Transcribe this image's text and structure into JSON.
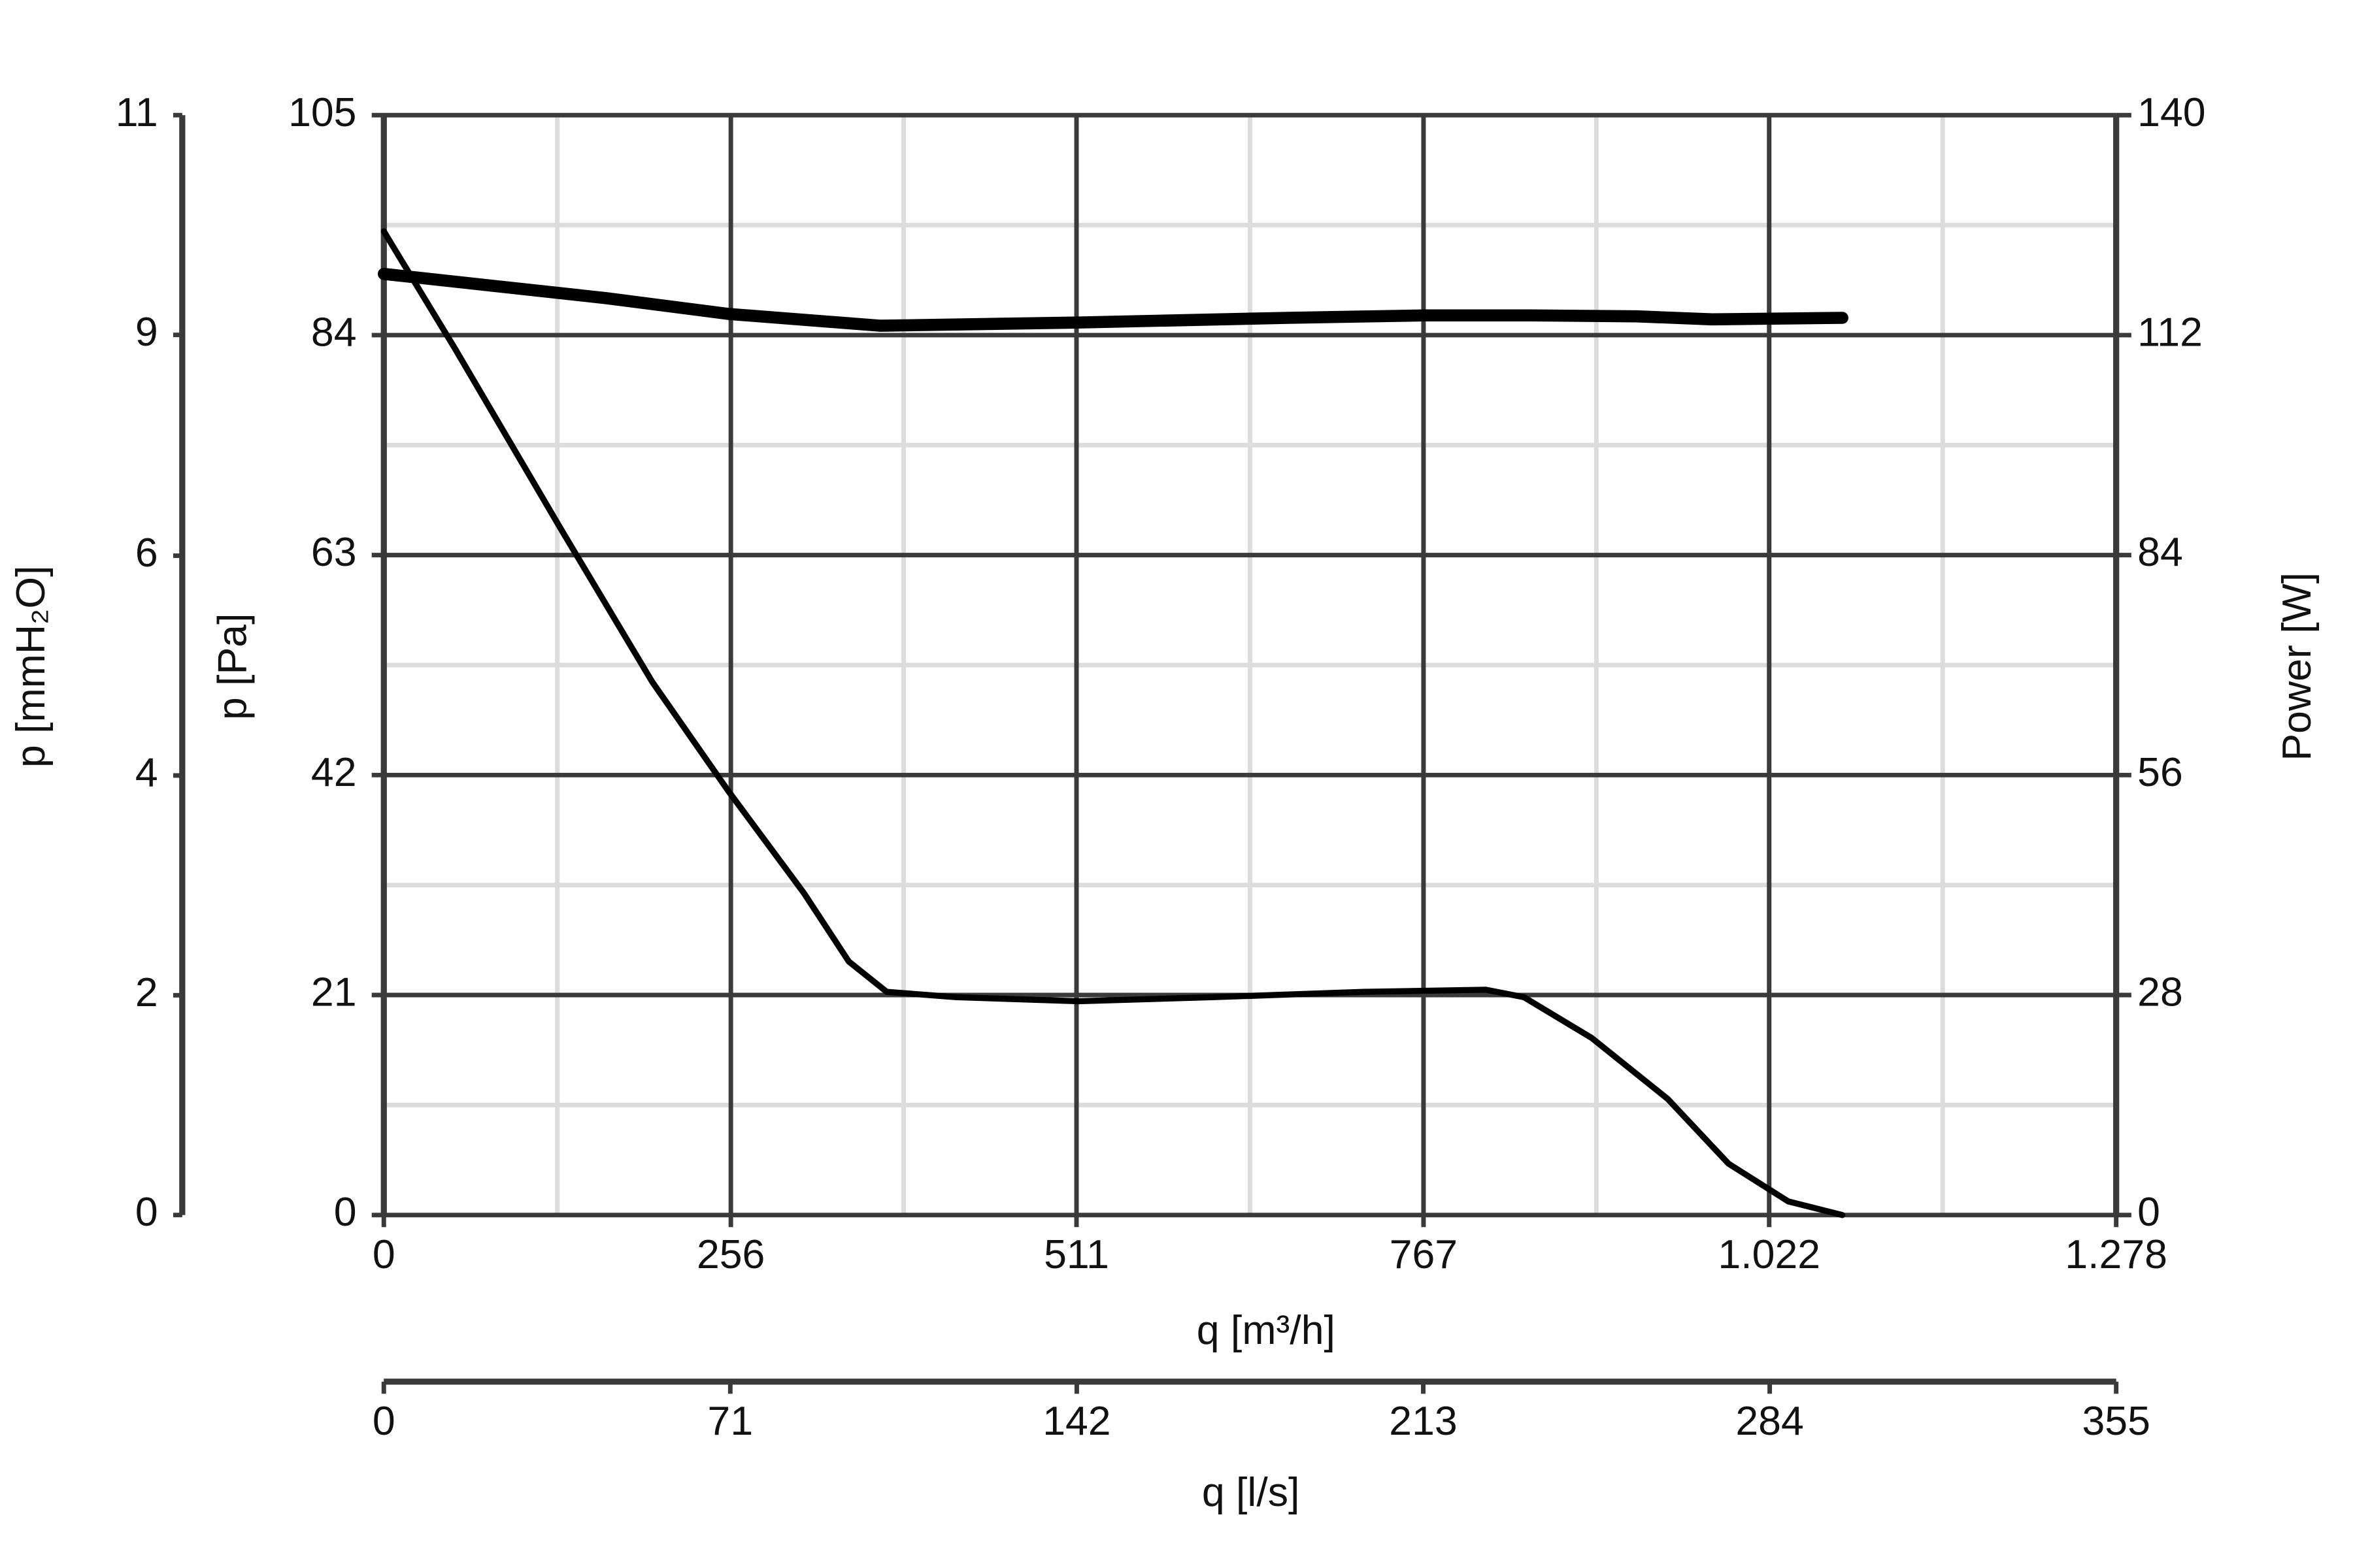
{
  "chart_data": {
    "type": "line",
    "xlabel": "q [m³/h]",
    "x2label": "q [l/s]",
    "ylabel": "p [Pa]",
    "y2label": "Power [W]",
    "y3label": "p [mmH₂O]",
    "xlim": [
      0,
      1278
    ],
    "xticks": [
      0,
      256,
      511,
      767,
      {
        "value": 1022,
        "label": "1.022"
      },
      {
        "value": 1278,
        "label": "1.278"
      }
    ],
    "x2lim": [
      0,
      355
    ],
    "x2ticks": [
      0,
      71,
      142,
      213,
      284,
      355
    ],
    "ylim": [
      0,
      105
    ],
    "yticks": [
      0,
      21,
      42,
      63,
      84,
      105
    ],
    "y2lim": [
      0,
      140
    ],
    "y2ticks": [
      0,
      28,
      56,
      84,
      112,
      140
    ],
    "y3lim": [
      0,
      10.71
    ],
    "y3ticks": [
      0,
      {
        "value": 2.14,
        "label": "2"
      },
      {
        "value": 4.28,
        "label": "4"
      },
      {
        "value": 6.42,
        "label": "6"
      },
      {
        "value": 8.57,
        "label": "9"
      },
      {
        "value": 10.71,
        "label": "11"
      }
    ],
    "grid": true,
    "series": [
      {
        "color": "#000000",
        "axis": "y",
        "x": [
          0,
          52.6,
          131,
          198,
          254,
          310,
          343,
          371,
          422,
          512,
          612,
          723,
          813,
          841,
          891,
          947,
          992,
          1036,
          1076
        ],
        "values": [
          93.9,
          82.7,
          65.4,
          50.9,
          40.5,
          30.7,
          24.2,
          21.3,
          20.8,
          20.4,
          20.8,
          21.3,
          21.5,
          20.8,
          16.9,
          11.1,
          4.9,
          1.3,
          0
        ]
      },
      {
        "color": "#000000",
        "axis": "y2",
        "x": [
          0,
          164,
          254,
          366,
          512,
          667,
          768,
          846,
          924,
          980,
          1076
        ],
        "values": [
          119.8,
          116.7,
          114.7,
          113.2,
          113.6,
          114.2,
          114.5,
          114.5,
          114.4,
          114.0,
          114.2
        ]
      }
    ]
  }
}
